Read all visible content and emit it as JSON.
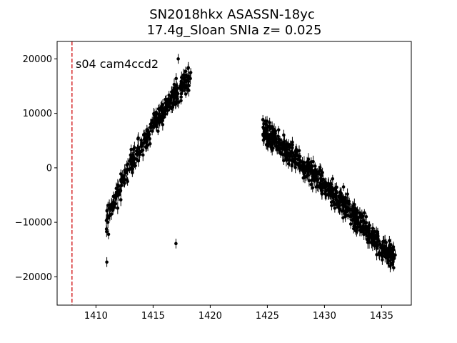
{
  "chart_data": {
    "type": "scatter",
    "title_line1": "SN2018hkx  ASASSN-18yc",
    "title_line2": "17.4g_Sloan SNIa z= 0.025",
    "xlabel": "",
    "ylabel": "",
    "xlim": [
      1406.6,
      1437.6
    ],
    "ylim": [
      -25200,
      23200
    ],
    "xticks": [
      1410,
      1415,
      1420,
      1425,
      1430,
      1435
    ],
    "yticks": [
      -20000,
      -10000,
      0,
      10000,
      20000
    ],
    "xtick_labels": [
      "1410",
      "1415",
      "1420",
      "1425",
      "1430",
      "1435"
    ],
    "ytick_labels": [
      "−20000",
      "−10000",
      "0",
      "10000",
      "20000"
    ],
    "grid": false,
    "marker_color": "#000000",
    "vline": {
      "x": 1407.9,
      "color": "#d62728",
      "style": "dashed"
    },
    "annotation": "s04 cam4ccd2",
    "series": [
      {
        "segments": [
          {
            "x_start": 1410.9,
            "x_end": 1418.3,
            "y_start": -9500,
            "y_end": 16500,
            "curve": 0.45,
            "scatter": 1600,
            "count": 330
          },
          {
            "x_start": 1424.6,
            "x_end": 1436.2,
            "y_start": 7000,
            "y_end": -17000,
            "curve": 0.15,
            "scatter": 1600,
            "count": 620
          }
        ],
        "outliers": [
          {
            "x": 1410.95,
            "y": -17300
          },
          {
            "x": 1417.0,
            "y": -13900
          },
          {
            "x": 1411.1,
            "y": -12200
          },
          {
            "x": 1417.2,
            "y": 20000
          }
        ],
        "yerr": 900
      }
    ]
  }
}
